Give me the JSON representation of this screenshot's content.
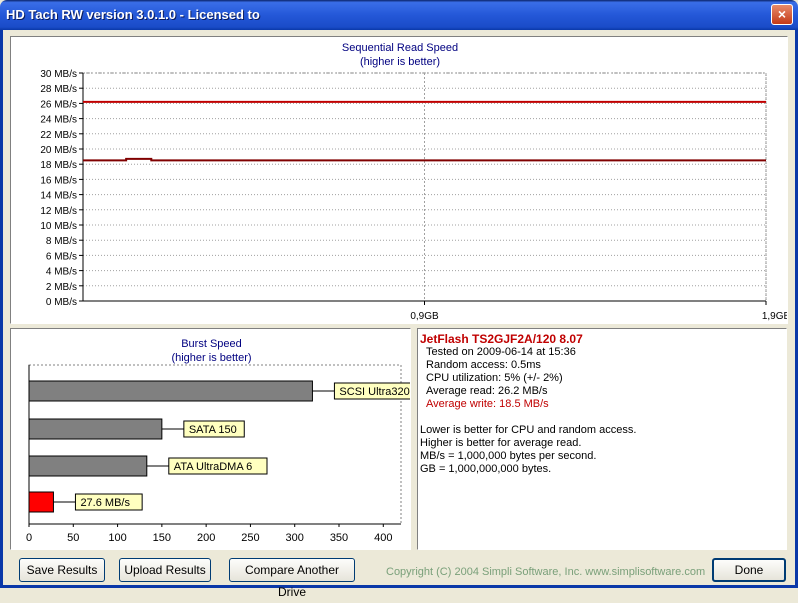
{
  "window": {
    "title": "HD Tach RW version 3.0.1.0 - Licensed to",
    "close_glyph": "×"
  },
  "sequential": {
    "title": "Sequential Read Speed",
    "subtitle": "(higher is better)"
  },
  "burst": {
    "title": "Burst Speed",
    "subtitle": "(higher is better)"
  },
  "info": {
    "drive": "JetFlash TS2GJF2A/120 8.07",
    "tested": "Tested on 2009-06-14 at 15:36",
    "random_access": "Random access: 0.5ms",
    "cpu": "CPU utilization: 5% (+/- 2%)",
    "avg_read": "Average read: 26.2 MB/s",
    "avg_write": "Average write: 18.5 MB/s",
    "note1": "Lower is better for CPU and random access.",
    "note2": "Higher is better for average read.",
    "note3": "MB/s = 1,000,000 bytes per second.",
    "note4": "GB = 1,000,000,000 bytes."
  },
  "buttons": {
    "save": "Save Results",
    "upload": "Upload Results",
    "compare": "Compare Another Drive",
    "done": "Done"
  },
  "copyright": "Copyright (C) 2004 Simpli Software, Inc. www.simplisoftware.com",
  "colors": {
    "read": "#c00000",
    "write": "#800000",
    "grid": "#808080",
    "bar": "#808080",
    "burst_bar": "#ff0000",
    "label_bg": "#ffffc0"
  },
  "chart_data": [
    {
      "type": "line",
      "title": "Sequential Read Speed",
      "subtitle": "(higher is better)",
      "ylim": [
        0,
        30
      ],
      "y_ticks": [
        0,
        2,
        4,
        6,
        8,
        10,
        12,
        14,
        16,
        18,
        20,
        22,
        24,
        26,
        28,
        30
      ],
      "y_tick_suffix": " MB/s",
      "x_ticks": [
        "0,9GB",
        "1,9GB"
      ],
      "xlim_gb": [
        0,
        1.9
      ],
      "grid": true,
      "series": [
        {
          "name": "Average read: 26.2 MB/s",
          "x_gb": [
            0,
            1.9
          ],
          "y": [
            26.2,
            26.2
          ]
        },
        {
          "name": "Average write: 18.5 MB/s",
          "x_gb": [
            0,
            0.12,
            0.12,
            0.19,
            0.19,
            1.9
          ],
          "y": [
            18.5,
            18.5,
            18.7,
            18.7,
            18.5,
            18.5
          ]
        }
      ]
    },
    {
      "type": "bar",
      "orientation": "horizontal",
      "title": "Burst Speed",
      "subtitle": "(higher is better)",
      "xlim": [
        0,
        420
      ],
      "x_ticks": [
        0,
        50,
        100,
        150,
        200,
        250,
        300,
        350,
        400
      ],
      "categories": [
        "SCSI Ultra320",
        "SATA 150",
        "ATA UltraDMA 6",
        "27.6 MB/s"
      ],
      "values": [
        320,
        150,
        133,
        27.6
      ]
    }
  ]
}
